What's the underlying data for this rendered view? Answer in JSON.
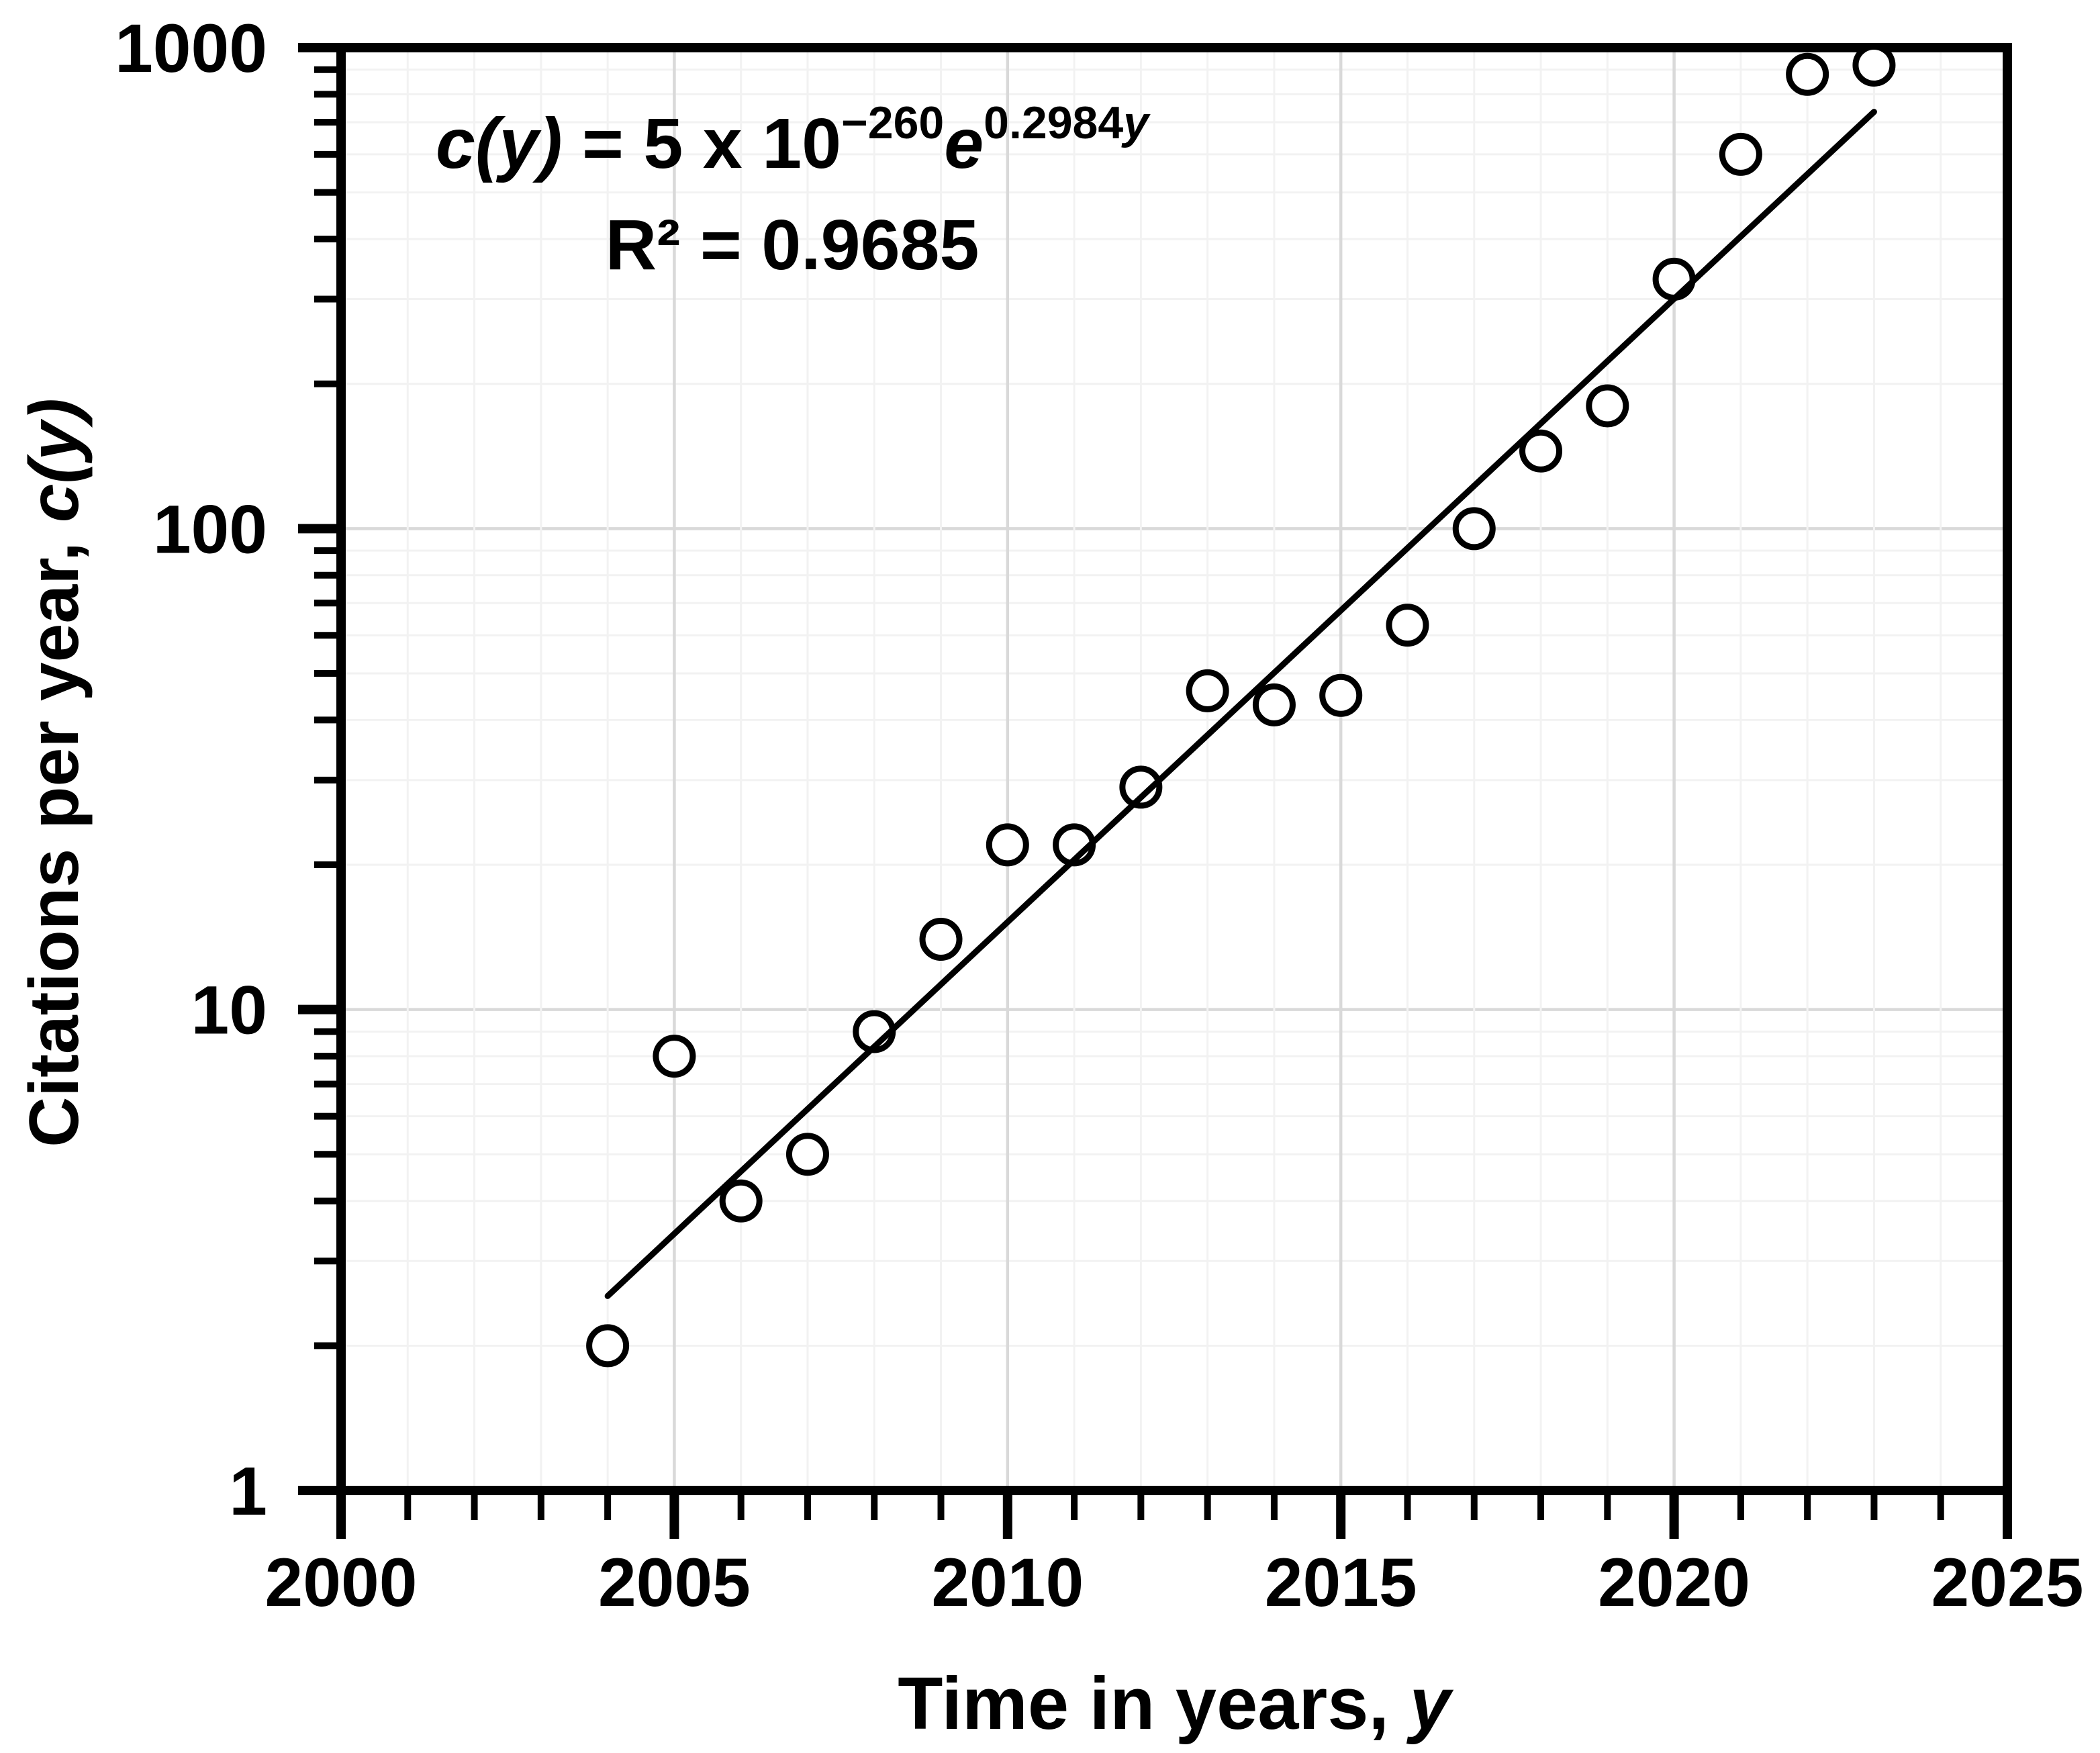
{
  "page": {
    "background": "#ffffff",
    "text_color": "#000000"
  },
  "annotation": {
    "eq_lhs": "c(y)",
    "eq_mid": " = 5 x 10",
    "eq_exp1": "−260",
    "eq_e": "e",
    "eq_exp2_num": "0.2984",
    "eq_exp2_var": "y",
    "r_squared": "R² = 0.9685"
  },
  "axes": {
    "xlabel_main": "Time in years, ",
    "xlabel_var": "y",
    "ylabel_main": "Citations per year, ",
    "ylabel_func": "c(y)"
  },
  "chart_data": {
    "type": "scatter",
    "title": "",
    "xlabel": "Time in years, y",
    "ylabel": "Citations per year, c(y)",
    "x_scale": "linear",
    "y_scale": "log",
    "xlim": [
      2000,
      2025
    ],
    "ylim": [
      1,
      1000
    ],
    "x_ticks": [
      2000,
      2005,
      2010,
      2015,
      2020,
      2025
    ],
    "x_minor_tick_step_years": 1,
    "y_ticks": [
      1,
      10,
      100,
      1000
    ],
    "y_minor_ticks": "2,3,4,5,6,7,8,9 within each decade",
    "grid": "on (minor and major, light gray)",
    "legend": "none",
    "marker": "open-circle",
    "points": [
      {
        "year": 2004,
        "citations": 2
      },
      {
        "year": 2005,
        "citations": 8
      },
      {
        "year": 2006,
        "citations": 4
      },
      {
        "year": 2007,
        "citations": 5
      },
      {
        "year": 2008,
        "citations": 9
      },
      {
        "year": 2009,
        "citations": 14
      },
      {
        "year": 2010,
        "citations": 22
      },
      {
        "year": 2011,
        "citations": 22
      },
      {
        "year": 2012,
        "citations": 29
      },
      {
        "year": 2013,
        "citations": 46
      },
      {
        "year": 2014,
        "citations": 43
      },
      {
        "year": 2015,
        "citations": 45
      },
      {
        "year": 2016,
        "citations": 63
      },
      {
        "year": 2017,
        "citations": 100
      },
      {
        "year": 2018,
        "citations": 145
      },
      {
        "year": 2019,
        "citations": 180
      },
      {
        "year": 2020,
        "citations": 330
      },
      {
        "year": 2021,
        "citations": 600
      },
      {
        "year": 2022,
        "citations": 880
      },
      {
        "year": 2023,
        "citations": 920
      }
    ],
    "fit": {
      "type": "exponential",
      "formula": "c(y) = 5 x 10^−260 e^(0.2984y)",
      "coefficient": "5e-260",
      "rate": 0.2984,
      "r2": 0.9685,
      "x_start": 2004,
      "x_end": 2023
    },
    "styles": {
      "point_color": "#000000",
      "point_fill": "#ffffff",
      "line_color": "#000000",
      "minor_grid_color": "#f2f2f2",
      "major_grid_color": "#d9d9d9",
      "frame_color": "#000000"
    }
  }
}
